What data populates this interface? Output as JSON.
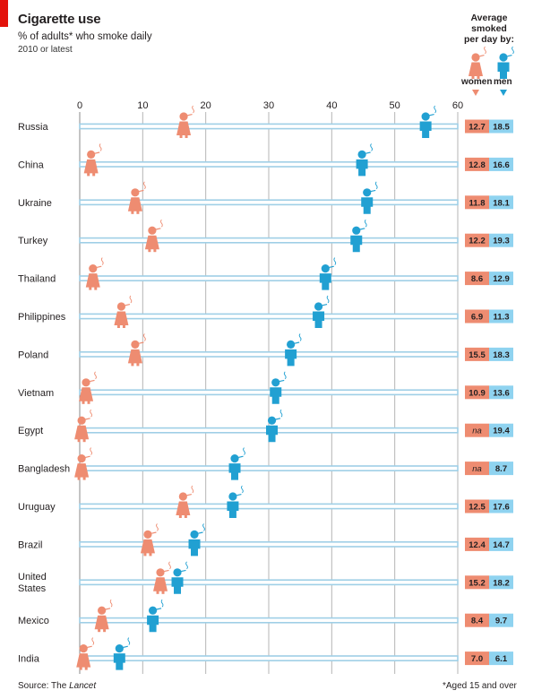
{
  "header": {
    "title": "Cigarette use",
    "subtitle": "% of adults* who smoke daily",
    "note": "2010 or latest"
  },
  "legend": {
    "heading": [
      "Average",
      "smoked",
      "per day by:"
    ],
    "women": "women",
    "men": "men",
    "women_color": "#ee8c71",
    "men_color": "#21a0d2"
  },
  "footer": {
    "source_prefix": "Source: The ",
    "source_italic": "Lancet",
    "footnote": "*Aged 15 and over"
  },
  "chart_data": {
    "type": "scatter",
    "title": "Cigarette use",
    "subtitle": "% of adults* who smoke daily",
    "xlim": [
      0,
      60
    ],
    "xticks": [
      0,
      10,
      20,
      30,
      40,
      50,
      60
    ],
    "grid": true,
    "rows": [
      {
        "country": "Russia",
        "women": 16.5,
        "men": 54.9,
        "avg_women": "12.7",
        "avg_men": "18.5"
      },
      {
        "country": "China",
        "women": 1.8,
        "men": 44.8,
        "avg_women": "12.8",
        "avg_men": "16.6"
      },
      {
        "country": "Ukraine",
        "women": 8.8,
        "men": 45.6,
        "avg_women": "11.8",
        "avg_men": "18.1"
      },
      {
        "country": "Turkey",
        "women": 11.5,
        "men": 43.9,
        "avg_women": "12.2",
        "avg_men": "19.3"
      },
      {
        "country": "Thailand",
        "women": 2.1,
        "men": 39.0,
        "avg_women": "8.6",
        "avg_men": "12.9"
      },
      {
        "country": "Philippines",
        "women": 6.6,
        "men": 37.9,
        "avg_women": "6.9",
        "avg_men": "11.3"
      },
      {
        "country": "Poland",
        "women": 8.8,
        "men": 33.5,
        "avg_women": "15.5",
        "avg_men": "18.3"
      },
      {
        "country": "Vietnam",
        "women": 1.0,
        "men": 31.1,
        "avg_women": "10.9",
        "avg_men": "13.6"
      },
      {
        "country": "Egypt",
        "women": 0.3,
        "men": 30.5,
        "avg_women": "na",
        "avg_men": "19.4"
      },
      {
        "country": "Bangladesh",
        "women": 0.3,
        "men": 24.6,
        "avg_women": "na",
        "avg_men": "8.7"
      },
      {
        "country": "Uruguay",
        "women": 16.4,
        "men": 24.3,
        "avg_women": "12.5",
        "avg_men": "17.6"
      },
      {
        "country": "Brazil",
        "women": 10.8,
        "men": 18.2,
        "avg_women": "12.4",
        "avg_men": "14.7"
      },
      {
        "country": "United States",
        "women": 12.8,
        "men": 15.5,
        "avg_women": "15.2",
        "avg_men": "18.2"
      },
      {
        "country": "Mexico",
        "women": 3.5,
        "men": 11.6,
        "avg_women": "8.4",
        "avg_men": "9.7"
      },
      {
        "country": "India",
        "women": 0.6,
        "men": 6.3,
        "avg_women": "7.0",
        "avg_men": "6.1"
      }
    ]
  }
}
